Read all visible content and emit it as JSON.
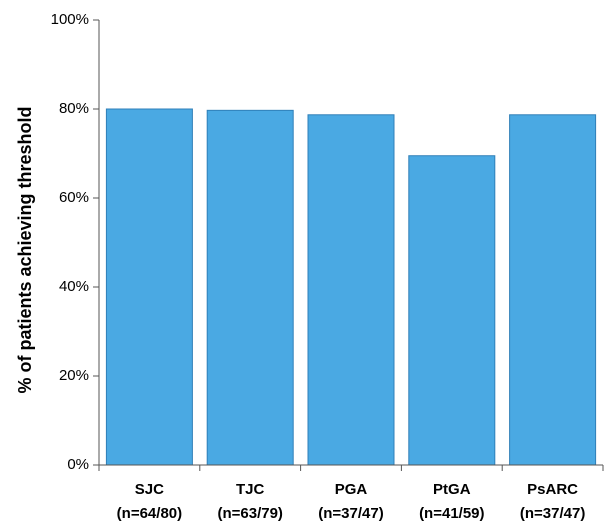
{
  "chart_data": {
    "type": "bar",
    "categories": [
      "SJC",
      "TJC",
      "PGA",
      "PtGA",
      "PsARC"
    ],
    "category_sublabels": [
      "(n=64/80)",
      "(n=63/79)",
      "(n=37/47)",
      "(n=41/59)",
      "(n=37/47)"
    ],
    "values": [
      80,
      79.7,
      78.7,
      69.5,
      78.7
    ],
    "title": "",
    "xlabel": "",
    "ylabel": "% of patients achieving threshold",
    "ylim": [
      0,
      100
    ],
    "yticks": [
      0,
      20,
      40,
      60,
      80,
      100
    ],
    "ytick_labels": [
      "0%",
      "20%",
      "40%",
      "60%",
      "80%",
      "100%"
    ],
    "grid": false,
    "legend": "none",
    "bar_color": "#4aa9e3",
    "bar_edge_color": "#2f7fb8"
  }
}
